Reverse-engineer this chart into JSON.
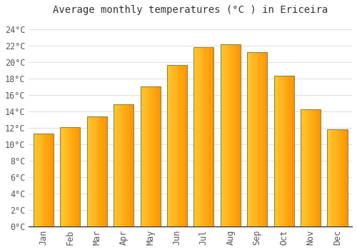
{
  "title": "Average monthly temperatures (°C ) in Ericeira",
  "months": [
    "Jan",
    "Feb",
    "Mar",
    "Apr",
    "May",
    "Jun",
    "Jul",
    "Aug",
    "Sep",
    "Oct",
    "Nov",
    "Dec"
  ],
  "temperatures": [
    11.3,
    12.1,
    13.4,
    14.8,
    17.0,
    19.6,
    21.8,
    22.1,
    21.2,
    18.3,
    14.2,
    11.8
  ],
  "bar_color_left": "#FFB300",
  "bar_color_right": "#FF9500",
  "bar_color_mid": "#FFC830",
  "bar_outline": "#888844",
  "ylim": [
    0,
    25
  ],
  "ytick_step": 2,
  "background_color": "#FFFFFF",
  "plot_bg_color": "#FFFFFF",
  "grid_color": "#DDDDDD",
  "title_fontsize": 10,
  "tick_fontsize": 8.5,
  "font_family": "monospace"
}
